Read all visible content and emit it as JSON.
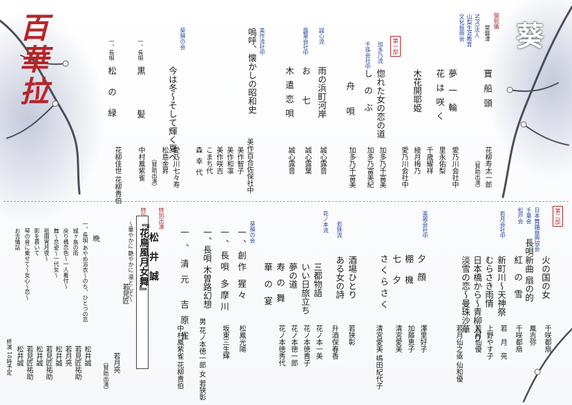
{
  "logo_text": "百華拉",
  "corner_mark": "葵",
  "upper": {
    "greeting_label": "御祝儀",
    "part_label": "第一部",
    "organizer_a": [
      "NPO法人",
      "山梨生涯教育",
      "文化振興会"
    ],
    "performances": [
      {
        "school": "常磐津",
        "title": "寶船頭",
        "performer": "花柳寿太一郎",
        "note": "（賛助出演）"
      },
      {
        "school": "",
        "title": "夢一輪",
        "performer": "愛乃川会社中"
      },
      {
        "school": "",
        "title": "花は咲く",
        "performer": "里永佑梨"
      },
      {
        "school": "",
        "title": "",
        "performer": "千歳耀祥"
      },
      {
        "school": "",
        "title": "",
        "performer": "綾月梅乃"
      },
      {
        "school": "",
        "title": "木花開耶姫",
        "performer": "愛乃川会社中"
      },
      {
        "school": "加多乃流",
        "title": "惚れた女の恋の道",
        "performer": "加多乃千富美"
      },
      {
        "school": "千珠会社中",
        "title": "しのぶ",
        "performer": "加多乃富美紀"
      },
      {
        "school": "",
        "title": "舟唄",
        "performer": "加多乃千富美"
      },
      {
        "school": "誠心流",
        "title": "雨の浜町河岸",
        "performer": "誠心露音"
      },
      {
        "school": "露葉会社中",
        "title": "お七",
        "performer": "誠心露葉"
      },
      {
        "school": "",
        "title": "木遣恋唄",
        "performer": "誠心露音"
      },
      {
        "school": "美作流社中",
        "title": "嗚呼、懐かしの昭和史",
        "performer": "美作百合佐保社中"
      },
      {
        "school": "",
        "title": "",
        "performer": "美作智子"
      },
      {
        "school": "",
        "title": "",
        "performer": "美作和凛"
      },
      {
        "school": "",
        "title": "",
        "performer": "美作咲吉"
      },
      {
        "school": "",
        "title": "",
        "performer": "こまち代"
      },
      {
        "school": "",
        "title": "",
        "performer": "森幸代"
      },
      {
        "school": "葵撰の会",
        "title": "今は冬～そして輝く夏へ",
        "performer": "愛乃川七々寿"
      },
      {
        "school": "",
        "title": "",
        "performer": "松島金昇"
      },
      {
        "school": "",
        "title": "",
        "performer": "（賛助出演）"
      },
      {
        "school": "一、長唄",
        "title": "黒髪",
        "performer": "中村鳳紫雀"
      },
      {
        "school": "一、長唄",
        "title": "松の緑",
        "performer": "花柳佳世 花柳貴伯"
      }
    ]
  },
  "lower": {
    "part_label": "第二部",
    "special_label": "特別企画",
    "special_title": "『花鳥風月女舞』",
    "special_sub": "～華やかに 艶やかに 凛として～",
    "special_guest_label": "特別出演",
    "special_guest": "松井誠",
    "finale_label": "晩",
    "end_text": "終演 18時予定",
    "performances": [
      {
        "school": "日本舞踊振興協会",
        "title": "火の国の女",
        "performer": "千咲都扇"
      },
      {
        "school": "千葉会",
        "title": "長唄新曲 扇の的",
        "performer": "鳳吉弥"
      },
      {
        "school": "松戸会",
        "title": "紅の雪",
        "performer": "千咲都扇"
      },
      {
        "school": "若月会社中",
        "title": "新町川～天神祭",
        "performer": "若月亮"
      },
      {
        "school": "",
        "title": "むらさき雨情",
        "performer": "上野やす子"
      },
      {
        "school": "",
        "title": "日本橋から～青柳入り",
        "performer": "若月仙優"
      },
      {
        "school": "",
        "title": "淡雪の恋～曼珠沙華",
        "performer": "若月仙之亟 仙和優"
      },
      {
        "school": "美蓉会社中",
        "title": "夕顔",
        "performer": "澤里好子"
      },
      {
        "school": "",
        "title": "棚機",
        "performer": "加藤恵子"
      },
      {
        "school": "",
        "title": "七夕",
        "performer": "清宮愛美"
      },
      {
        "school": "",
        "title": "さくらさく",
        "performer": "清宮愛美 嶋田紀代子"
      },
      {
        "school": "若狭流",
        "title": "酒場ひとり",
        "performer": "若狭彰"
      },
      {
        "school": "",
        "title": "ある女の詩",
        "performer": "升酒保春香"
      },
      {
        "school": "花ノ本流",
        "title": "三都物語",
        "performer": "花ノ本一美"
      },
      {
        "school": "",
        "title": "いい日旅立ち",
        "performer": "花ノ本徳貴子"
      },
      {
        "school": "",
        "title": "夢の道",
        "performer": "花ノ本徳一郎"
      },
      {
        "school": "",
        "title": "寿の舞",
        "performer": "花ノ本徳秀代"
      },
      {
        "school": "",
        "title": "華の宴",
        "performer": ""
      },
      {
        "school": "葵撰の会",
        "title": "一、創作 猩々",
        "performer": "松鳳光陽"
      },
      {
        "school": "",
        "title": "一、長唄 多摩川",
        "performer": "坂東三生輝"
      },
      {
        "school": "",
        "title": "一、長唄 木曽路幻想",
        "performer": "男 花ノ本徳一郎 女 若狭彰"
      },
      {
        "school": "",
        "title": "一、清元 吉原雀",
        "performer": "中村鳳紫雀 花柳貴伯"
      },
      {
        "school": "",
        "title": "若見匠",
        "performer": "若月亮"
      },
      {
        "school": "",
        "title": "松井誠",
        "performer": "（賛助出演）"
      }
    ],
    "finale": [
      {
        "title": "一、長唄 あやめ浴衣～のち、ひとつの恋",
        "performer": "松井誠"
      },
      {
        "title": "城ヶ島の雨",
        "performer": "若見匠祐助"
      },
      {
        "title": "戻り橋恋色～一人着付～",
        "performer": "若月亮"
      },
      {
        "title": "舞～恋姿～一代女～",
        "performer": "松井誠"
      },
      {
        "title": "祇園宵月夜～",
        "performer": "若見匠祐助"
      },
      {
        "title": "影を慕いて",
        "performer": "松井誠"
      },
      {
        "title": "琴の音に乗せて～女心～恋～",
        "performer": "若見匠祐助"
      },
      {
        "title": "お吉情話",
        "performer": "松井誠"
      }
    ]
  }
}
